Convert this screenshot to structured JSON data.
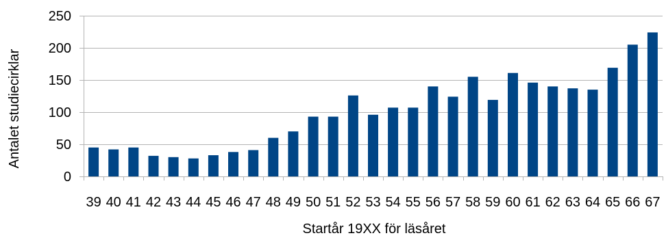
{
  "chart_data": {
    "type": "bar",
    "title": "",
    "xlabel": "Startår 19XX för läsåret",
    "ylabel": "Antalet studiecirklar",
    "ylim": [
      0,
      250
    ],
    "yticks": [
      0,
      50,
      100,
      150,
      200,
      250
    ],
    "grid": true,
    "legend": "none",
    "bar_color": "#004586",
    "categories": [
      "39",
      "40",
      "41",
      "42",
      "43",
      "44",
      "45",
      "46",
      "47",
      "48",
      "49",
      "50",
      "51",
      "52",
      "53",
      "54",
      "55",
      "56",
      "57",
      "58",
      "59",
      "60",
      "61",
      "62",
      "63",
      "64",
      "65",
      "66",
      "67"
    ],
    "series": [
      {
        "values": [
          45,
          42,
          45,
          32,
          30,
          28,
          33,
          38,
          41,
          60,
          70,
          93,
          93,
          126,
          96,
          107,
          107,
          140,
          124,
          155,
          119,
          161,
          146,
          140,
          137,
          135,
          169,
          205,
          224
        ]
      }
    ]
  }
}
